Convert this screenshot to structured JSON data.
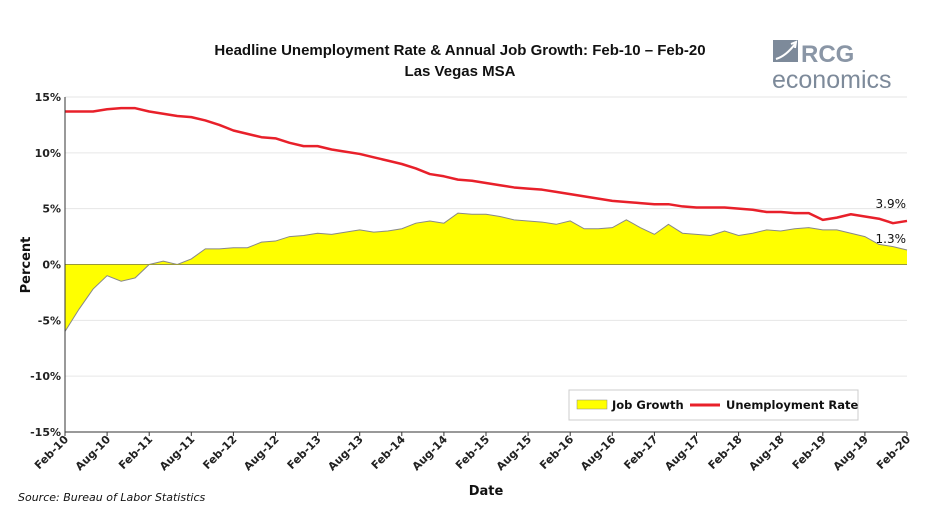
{
  "chart_data": {
    "type": "area+line",
    "title": "Headline Unemployment Rate & Annual Job Growth: Feb-10 – Feb-20",
    "subtitle": "Las Vegas MSA",
    "xlabel": "Date",
    "ylabel": "Percent",
    "source": "Source: Bureau of Labor Statistics",
    "logo": {
      "line1": "RCG",
      "line2": "economics"
    },
    "ylim": [
      -15,
      15
    ],
    "yticks": [
      15,
      10,
      5,
      0,
      -5,
      -10,
      -15
    ],
    "ytick_labels": [
      "15%",
      "10%",
      "5%",
      "0%",
      "-5%",
      "-10%",
      "-15%"
    ],
    "xtick_labels": [
      "Feb-10",
      "Aug-10",
      "Feb-11",
      "Aug-11",
      "Feb-12",
      "Aug-12",
      "Feb-13",
      "Aug-13",
      "Feb-14",
      "Aug-14",
      "Feb-15",
      "Aug-15",
      "Feb-16",
      "Aug-16",
      "Feb-17",
      "Aug-17",
      "Feb-18",
      "Aug-18",
      "Feb-19",
      "Aug-19",
      "Feb-20"
    ],
    "x": [
      "Feb-10",
      "Apr-10",
      "Jun-10",
      "Aug-10",
      "Oct-10",
      "Dec-10",
      "Feb-11",
      "Apr-11",
      "Jun-11",
      "Aug-11",
      "Oct-11",
      "Dec-11",
      "Feb-12",
      "Apr-12",
      "Jun-12",
      "Aug-12",
      "Oct-12",
      "Dec-12",
      "Feb-13",
      "Apr-13",
      "Jun-13",
      "Aug-13",
      "Oct-13",
      "Dec-13",
      "Feb-14",
      "Apr-14",
      "Jun-14",
      "Aug-14",
      "Oct-14",
      "Dec-14",
      "Feb-15",
      "Apr-15",
      "Jun-15",
      "Aug-15",
      "Oct-15",
      "Dec-15",
      "Feb-16",
      "Apr-16",
      "Jun-16",
      "Aug-16",
      "Oct-16",
      "Dec-16",
      "Feb-17",
      "Apr-17",
      "Jun-17",
      "Aug-17",
      "Oct-17",
      "Dec-17",
      "Feb-18",
      "Apr-18",
      "Jun-18",
      "Aug-18",
      "Oct-18",
      "Dec-18",
      "Feb-19",
      "Apr-19",
      "Jun-19",
      "Aug-19",
      "Oct-19",
      "Dec-19",
      "Feb-20"
    ],
    "series": [
      {
        "name": "Job Growth",
        "type": "area",
        "color": "#ffff00",
        "values": [
          -6.0,
          -4.0,
          -2.2,
          -1.0,
          -1.5,
          -1.2,
          0.0,
          0.3,
          0.0,
          0.5,
          1.4,
          1.4,
          1.5,
          1.5,
          2.0,
          2.1,
          2.5,
          2.6,
          2.8,
          2.7,
          2.9,
          3.1,
          2.9,
          3.0,
          3.2,
          3.7,
          3.9,
          3.7,
          4.6,
          4.5,
          4.5,
          4.3,
          4.0,
          3.9,
          3.8,
          3.6,
          3.9,
          3.2,
          3.2,
          3.3,
          4.0,
          3.3,
          2.7,
          3.6,
          2.8,
          2.7,
          2.6,
          3.0,
          2.6,
          2.8,
          3.1,
          3.0,
          3.2,
          3.3,
          3.1,
          3.1,
          2.8,
          2.5,
          1.8,
          1.6,
          1.3
        ]
      },
      {
        "name": "Unemployment Rate",
        "type": "line",
        "color": "#e8202a",
        "values": [
          13.7,
          13.7,
          13.7,
          13.9,
          14.0,
          14.0,
          13.7,
          13.5,
          13.3,
          13.2,
          12.9,
          12.5,
          12.0,
          11.7,
          11.4,
          11.3,
          10.9,
          10.6,
          10.6,
          10.3,
          10.1,
          9.9,
          9.6,
          9.3,
          9.0,
          8.6,
          8.1,
          7.9,
          7.6,
          7.5,
          7.3,
          7.1,
          6.9,
          6.8,
          6.7,
          6.5,
          6.3,
          6.1,
          5.9,
          5.7,
          5.6,
          5.5,
          5.4,
          5.4,
          5.2,
          5.1,
          5.1,
          5.1,
          5.0,
          4.9,
          4.7,
          4.7,
          4.6,
          4.6,
          4.0,
          4.2,
          4.5,
          4.3,
          4.1,
          3.7,
          3.9
        ]
      }
    ],
    "annotations": [
      "3.9%",
      "1.3%"
    ],
    "legend_placement": "bottom-right",
    "grid": true
  }
}
